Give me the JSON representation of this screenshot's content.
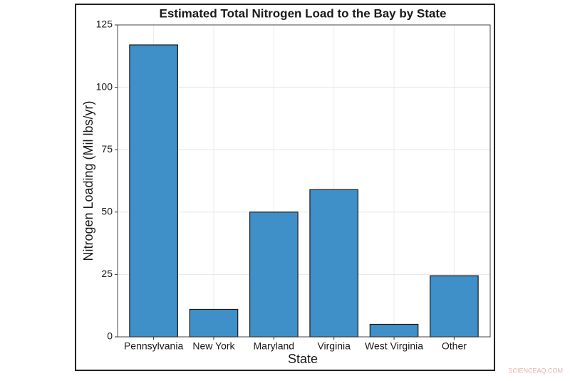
{
  "chart_data": {
    "type": "bar",
    "title": "Estimated Total Nitrogen Load to the Bay by State",
    "x_label": "State",
    "y_label": "Nitrogen Loading (Mil lbs/yr)",
    "categories": [
      "Pennsylvania",
      "New York",
      "Maryland",
      "Virginia",
      "West Virginia",
      "Other"
    ],
    "values": [
      117,
      11,
      50,
      59,
      5,
      24.5
    ],
    "color": "#3f8fc8",
    "ylim": [
      0,
      125
    ],
    "yticks": [
      0,
      25,
      50,
      75,
      100,
      125
    ],
    "grid": true,
    "watermark": "SCIENCEAQ.COM"
  }
}
